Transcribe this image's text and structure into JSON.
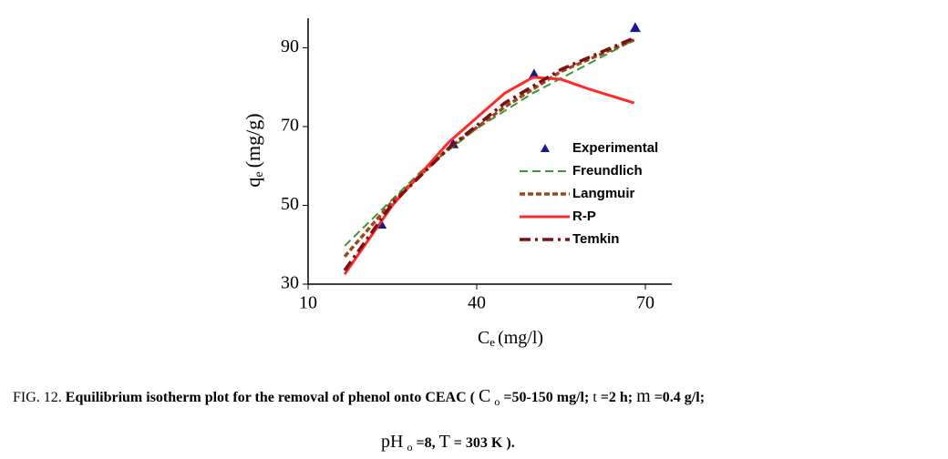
{
  "chart_data": {
    "type": "line",
    "ylabel": "q",
    "ylabel_sub": "e",
    "ylabel_unit": "(mg/g)",
    "xlabel": "C",
    "xlabel_sub": "e",
    "xlabel_unit": "(mg/l)",
    "xlim": [
      10,
      74.7
    ],
    "ylim": [
      30,
      97.5
    ],
    "xticks": [
      10,
      40,
      70
    ],
    "yticks": [
      30,
      50,
      70,
      90
    ],
    "legend": "right",
    "series": [
      {
        "name": "Experimental",
        "color": "#1a1a8c",
        "style": "triangle",
        "x": [
          23.0,
          35.8,
          50.2,
          68.2
        ],
        "values": [
          45.2,
          65.6,
          83.3,
          95.1
        ]
      },
      {
        "name": "Freundlich",
        "color": "#3a9a2e",
        "style": "dashed",
        "x": [
          16.5,
          30,
          40,
          50,
          60,
          68
        ],
        "values": [
          39.7,
          58.5,
          69.5,
          78.5,
          86,
          92
        ]
      },
      {
        "name": "Langmuir",
        "color": "#a0461e",
        "style": "dotted",
        "x": [
          16.5,
          25,
          35,
          45,
          55,
          68
        ],
        "values": [
          37,
          51,
          64.5,
          75,
          84,
          92
        ]
      },
      {
        "name": "R-P",
        "color": "#ff2a2a",
        "style": "solid",
        "x": [
          16.5,
          25,
          35,
          45,
          50,
          55,
          60,
          68
        ],
        "values": [
          32.5,
          50,
          66,
          78.5,
          82.5,
          82,
          79.5,
          76
        ]
      },
      {
        "name": "Temkin",
        "color": "#7a1010",
        "style": "dashdot",
        "x": [
          16.5,
          25,
          35,
          45,
          55,
          68
        ],
        "values": [
          33.5,
          50.5,
          64.5,
          76,
          84.5,
          92.5
        ]
      }
    ]
  },
  "caption": {
    "line1": [
      {
        "text": "FIG. 12.",
        "style": "normal"
      },
      {
        "text": "Equilibrium isotherm plot for the removal of phenol onto CEAC (",
        "style": "bold"
      },
      {
        "text": "C",
        "style": "big"
      },
      {
        "text": "o",
        "style": "sub"
      },
      {
        "text": "=50-150 mg/l;",
        "style": "bold"
      },
      {
        "text": "t",
        "style": "normal"
      },
      {
        "text": "=2 h;",
        "style": "bold"
      },
      {
        "text": "m",
        "style": "big"
      },
      {
        "text": "=0.4 g/l;",
        "style": "bold"
      }
    ],
    "line2": [
      {
        "text": "pH",
        "style": "big"
      },
      {
        "text": "o",
        "style": "sub"
      },
      {
        "text": "=8,",
        "style": "bold"
      },
      {
        "text": "T",
        "style": "big"
      },
      {
        "text": "= 303 K",
        "style": "bold"
      },
      {
        "text": ").",
        "style": "bold"
      }
    ]
  }
}
